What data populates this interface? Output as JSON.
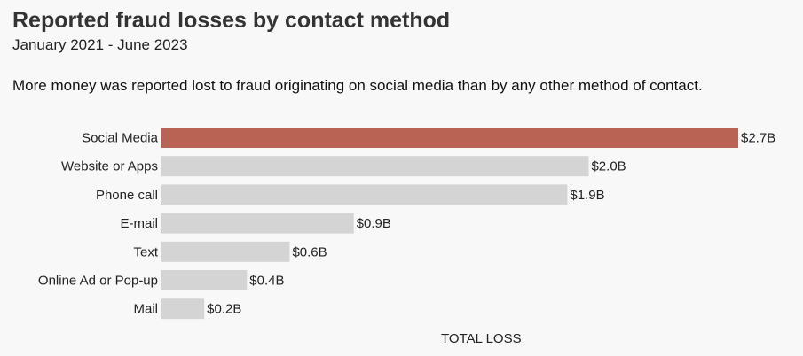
{
  "title": "Reported fraud losses by contact method",
  "subtitle": "January 2021 - June 2023",
  "description": "More money was reported lost to fraud originating on social media than by any other method of contact.",
  "chart_data": {
    "type": "bar",
    "orientation": "horizontal",
    "categories": [
      "Social Media",
      "Website or Apps",
      "Phone call",
      "E-mail",
      "Text",
      "Online Ad or Pop-up",
      "Mail"
    ],
    "values": [
      2.7,
      2.0,
      1.9,
      0.9,
      0.6,
      0.4,
      0.2
    ],
    "value_labels": [
      "$2.7B",
      "$2.0B",
      "$1.9B",
      "$0.9B",
      "$0.6B",
      "$0.4B",
      "$0.2B"
    ],
    "xlabel": "TOTAL LOSS",
    "ylabel": "",
    "xlim": [
      0,
      2.7
    ],
    "grid": false,
    "colors": {
      "highlight": "#b86354",
      "default": "#d4d4d4"
    },
    "highlight_index": 0
  }
}
